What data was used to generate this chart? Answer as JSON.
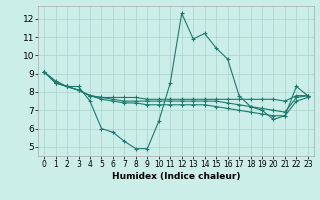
{
  "title": "",
  "xlabel": "Humidex (Indice chaleur)",
  "bg_color": "#cceee8",
  "grid_color": "#aad4ce",
  "line_color": "#1a7a6e",
  "xlim": [
    -0.5,
    23.5
  ],
  "ylim": [
    4.5,
    12.7
  ],
  "xticks": [
    0,
    1,
    2,
    3,
    4,
    5,
    6,
    7,
    8,
    9,
    10,
    11,
    12,
    13,
    14,
    15,
    16,
    17,
    18,
    19,
    20,
    21,
    22,
    23
  ],
  "yticks": [
    5,
    6,
    7,
    8,
    9,
    10,
    11,
    12
  ],
  "lines": [
    [
      9.1,
      8.6,
      8.3,
      8.3,
      7.5,
      6.0,
      5.8,
      5.3,
      4.9,
      4.9,
      6.4,
      8.5,
      12.3,
      10.9,
      11.2,
      10.4,
      9.8,
      7.8,
      7.2,
      7.0,
      6.5,
      6.7,
      8.3,
      7.8
    ],
    [
      9.1,
      8.5,
      8.3,
      8.1,
      7.8,
      7.7,
      7.7,
      7.7,
      7.7,
      7.6,
      7.6,
      7.6,
      7.6,
      7.6,
      7.6,
      7.6,
      7.6,
      7.6,
      7.6,
      7.6,
      7.6,
      7.5,
      7.8,
      7.8
    ],
    [
      9.1,
      8.5,
      8.3,
      8.1,
      7.8,
      7.7,
      7.6,
      7.5,
      7.5,
      7.5,
      7.5,
      7.5,
      7.5,
      7.5,
      7.5,
      7.5,
      7.4,
      7.3,
      7.2,
      7.1,
      7.0,
      6.9,
      7.7,
      7.8
    ],
    [
      9.1,
      8.5,
      8.3,
      8.1,
      7.8,
      7.6,
      7.5,
      7.4,
      7.4,
      7.3,
      7.3,
      7.3,
      7.3,
      7.3,
      7.3,
      7.2,
      7.1,
      7.0,
      6.9,
      6.8,
      6.7,
      6.7,
      7.5,
      7.7
    ]
  ]
}
